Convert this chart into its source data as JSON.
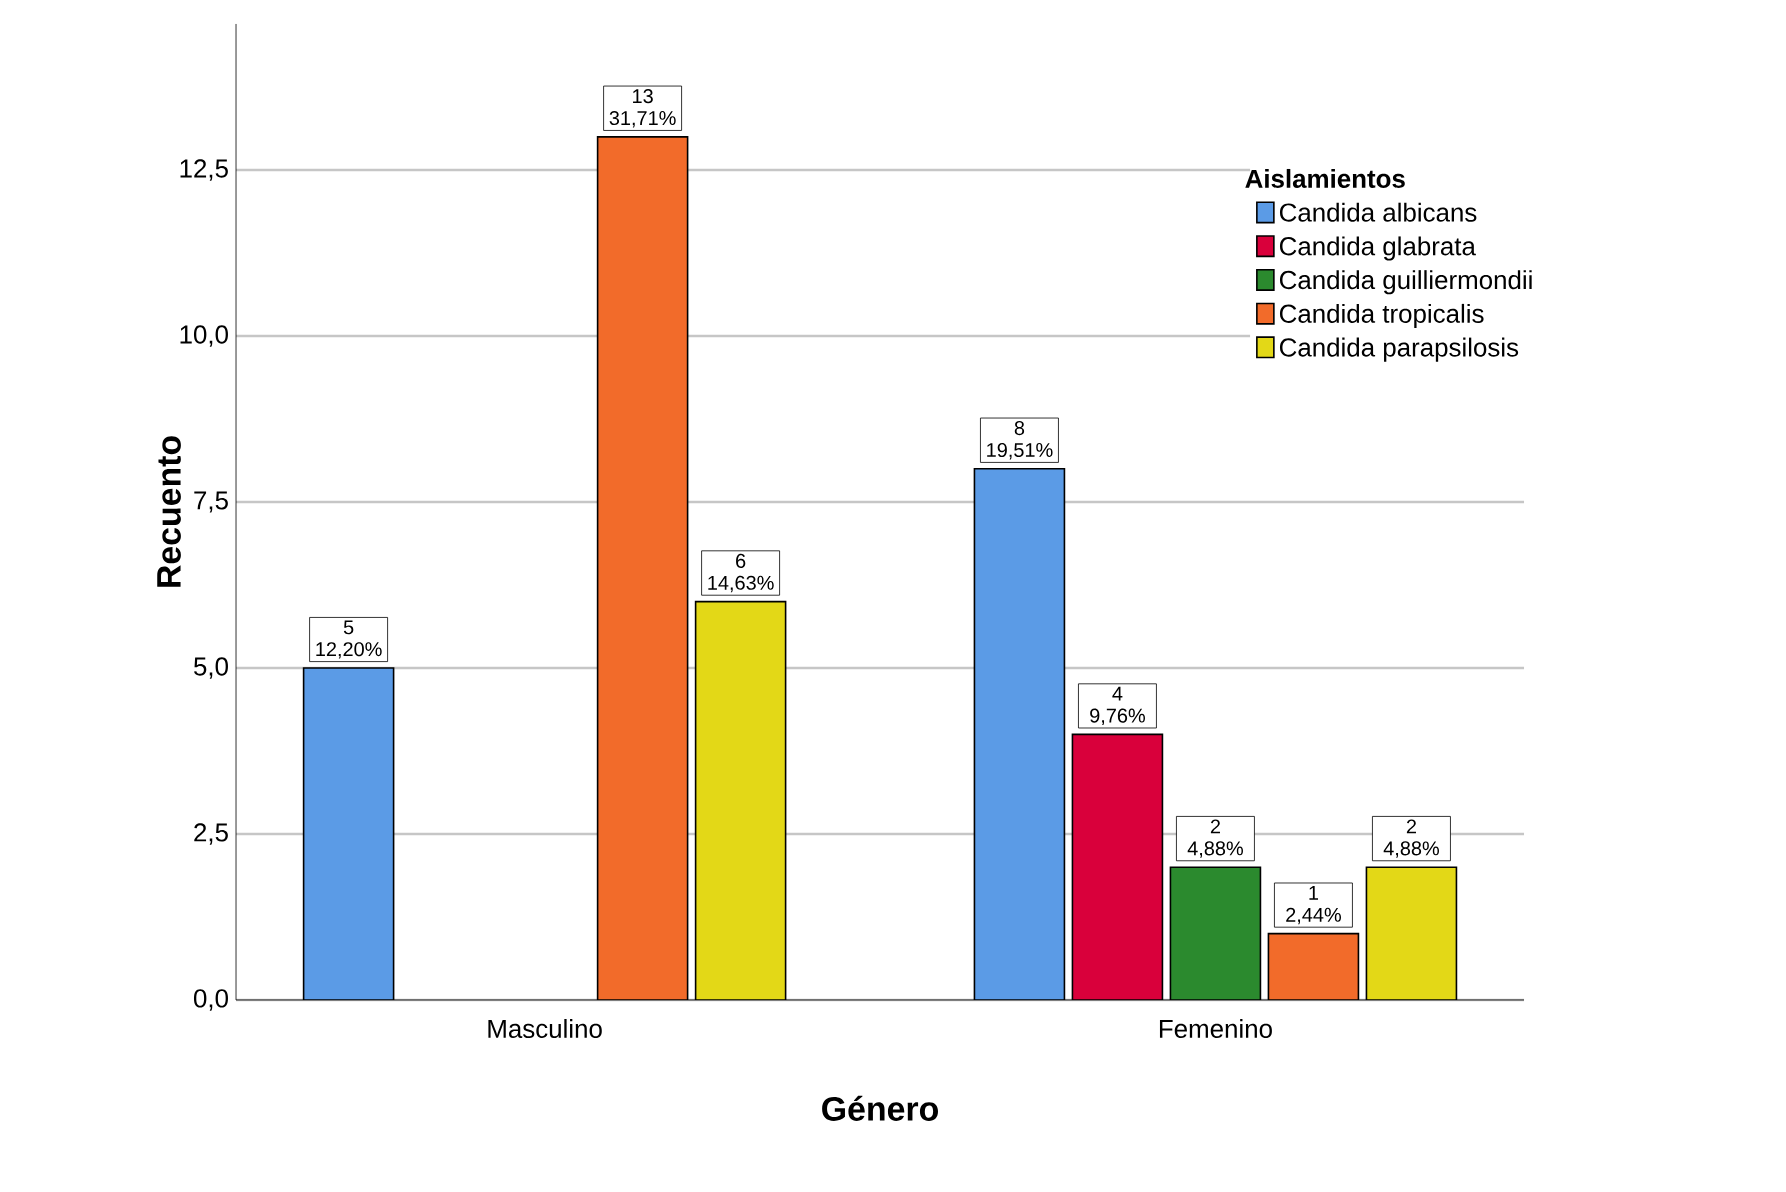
{
  "chart_data": {
    "type": "bar",
    "xlabel": "Género",
    "ylabel": "Recuento",
    "legend_title": "Aislamientos",
    "categories": [
      "Masculino",
      "Femenino"
    ],
    "series": [
      {
        "name": "Candida albicans",
        "color": "#5b9be6",
        "values": [
          5,
          8
        ],
        "value_labels": [
          "5 12,20%",
          "8 19,51%"
        ]
      },
      {
        "name": "Candida glabrata",
        "color": "#d9003b",
        "values": [
          null,
          4
        ],
        "value_labels": [
          null,
          "4 9,76%"
        ]
      },
      {
        "name": "Candida guilliermondii",
        "color": "#2b8a2e",
        "values": [
          null,
          2
        ],
        "value_labels": [
          null,
          "2 4,88%"
        ]
      },
      {
        "name": "Candida tropicalis",
        "color": "#f26b2a",
        "values": [
          13,
          1
        ],
        "value_labels": [
          "13 31,71%",
          "1 2,44%"
        ]
      },
      {
        "name": "Candida parapsilosis",
        "color": "#e3d817",
        "values": [
          6,
          2
        ],
        "value_labels": [
          "6 14,63%",
          "2 4,88%"
        ]
      }
    ],
    "ylim": [
      0,
      14.7
    ],
    "yticks": [
      {
        "value": 0,
        "label": "0,0"
      },
      {
        "value": 2.5,
        "label": "2,5"
      },
      {
        "value": 5,
        "label": "5,0"
      },
      {
        "value": 7.5,
        "label": "7,5"
      },
      {
        "value": 10,
        "label": "10,0"
      },
      {
        "value": 12.5,
        "label": "12,5"
      }
    ],
    "grid": "y",
    "legend": "top right"
  }
}
